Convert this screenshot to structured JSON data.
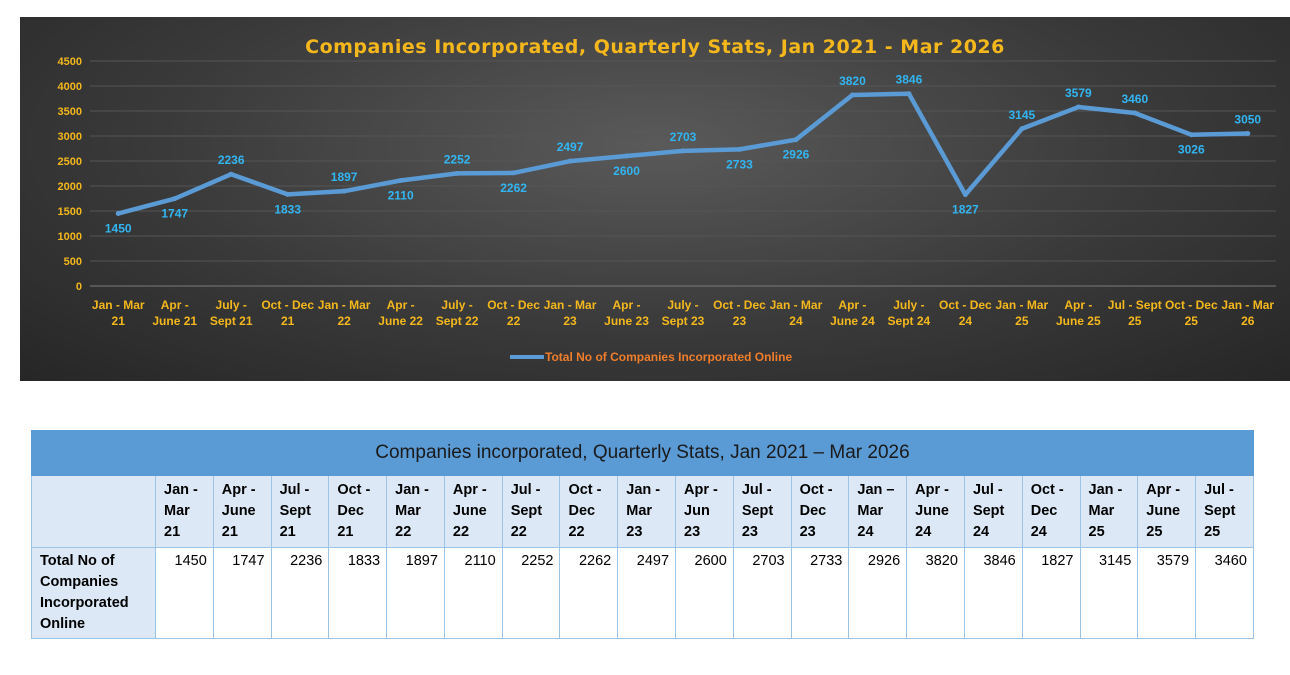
{
  "chart_data": {
    "type": "line",
    "title": "Companies Incorporated, Quarterly Stats, Jan 2021 - Mar 2026",
    "categories": [
      [
        "Jan - Mar",
        "21"
      ],
      [
        "Apr -",
        "June 21"
      ],
      [
        "July -",
        "Sept 21"
      ],
      [
        "Oct - Dec",
        "21"
      ],
      [
        "Jan - Mar",
        "22"
      ],
      [
        "Apr -",
        "June 22"
      ],
      [
        "July -",
        "Sept 22"
      ],
      [
        "Oct - Dec",
        "22"
      ],
      [
        "Jan - Mar",
        "23"
      ],
      [
        "Apr -",
        "June 23"
      ],
      [
        "July -",
        "Sept 23"
      ],
      [
        "Oct - Dec",
        "23"
      ],
      [
        "Jan - Mar",
        "24"
      ],
      [
        "Apr -",
        "June 24"
      ],
      [
        "July -",
        "Sept 24"
      ],
      [
        "Oct - Dec",
        "24"
      ],
      [
        "Jan - Mar",
        "25"
      ],
      [
        "Apr -",
        "June 25"
      ],
      [
        "Jul - Sept",
        "25"
      ],
      [
        "Oct - Dec",
        "25"
      ],
      [
        "Jan - Mar",
        "26"
      ]
    ],
    "series": [
      {
        "name": "Total No of Companies Incorporated Online",
        "values": [
          1450,
          1747,
          2236,
          1833,
          1897,
          2110,
          2252,
          2262,
          2497,
          2600,
          2703,
          2733,
          2926,
          3820,
          3846,
          1827,
          3145,
          3579,
          3460,
          3026,
          3050
        ],
        "color": "#5b9bd5"
      }
    ],
    "label_positions": [
      "below",
      "below",
      "above",
      "below",
      "above",
      "below",
      "above",
      "below",
      "above",
      "below",
      "above",
      "below",
      "below",
      "above",
      "above",
      "below",
      "above",
      "above",
      "above",
      "below",
      "above"
    ],
    "ylim": [
      0,
      4500
    ],
    "yticks": [
      0,
      500,
      1000,
      1500,
      2000,
      2500,
      3000,
      3500,
      4000,
      4500
    ],
    "grid": true,
    "legend": "bottom",
    "xlabel": "",
    "ylabel": "",
    "colors": {
      "axis_text": "#f5b81c",
      "data_label": "#31b6f3",
      "legend_text": "#f07d2a",
      "line": "#5b9bd5"
    }
  },
  "table": {
    "title": "Companies incorporated, Quarterly Stats, Jan 2021 – Mar 2026",
    "headers": [
      [
        "Jan -",
        "Mar",
        "21"
      ],
      [
        "Apr -",
        "June",
        "21"
      ],
      [
        "Jul -",
        "Sept",
        "21"
      ],
      [
        "Oct -",
        "Dec",
        "21"
      ],
      [
        "Jan -",
        "Mar",
        "22"
      ],
      [
        "Apr -",
        "June",
        "22"
      ],
      [
        "Jul -",
        "Sept",
        "22"
      ],
      [
        "Oct -",
        "Dec",
        "22"
      ],
      [
        "Jan -",
        "Mar",
        "23"
      ],
      [
        "Apr -",
        "Jun",
        "23"
      ],
      [
        "Jul -",
        "Sept",
        "23"
      ],
      [
        "Oct -",
        "Dec",
        "23"
      ],
      [
        "Jan –",
        "Mar",
        "24"
      ],
      [
        "Apr -",
        "June",
        "24"
      ],
      [
        "Jul -",
        "Sept",
        "24"
      ],
      [
        "Oct -",
        "Dec",
        "24"
      ],
      [
        "Jan -",
        "Mar",
        "25"
      ],
      [
        "Apr -",
        "June",
        "25"
      ],
      [
        "Jul -",
        "Sept",
        "25"
      ]
    ],
    "row_label": [
      "Total No of",
      "Companies",
      "Incorporated",
      "Online"
    ],
    "values": [
      "1450",
      "1747",
      "2236",
      "1833",
      "1897",
      "2110",
      "2252",
      "2262",
      "2497",
      "2600",
      "2703",
      "2733",
      "2926",
      "3820",
      "3846",
      "1827",
      "3145",
      "3579",
      "3460"
    ]
  }
}
